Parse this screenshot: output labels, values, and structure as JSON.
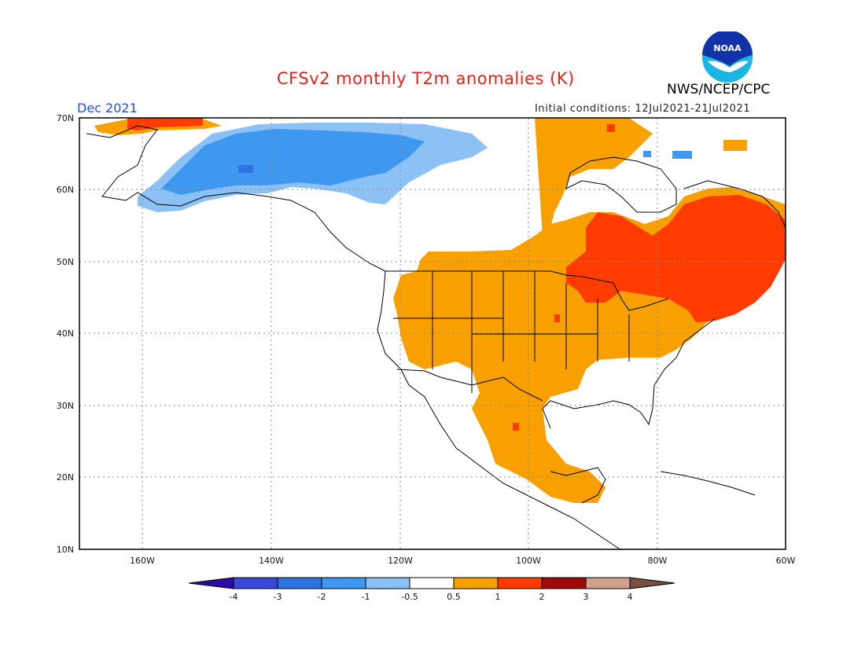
{
  "header": {
    "title": "CFSv2 monthly T2m anomalies (K)",
    "period": "Dec 2021",
    "initial_conditions": "Initial conditions: 12Jul2021-21Jul2021",
    "agency": "NWS/NCEP/CPC",
    "logo_text": "NOAA"
  },
  "axes": {
    "lat_labels": [
      "70N",
      "60N",
      "50N",
      "40N",
      "30N",
      "20N",
      "10N"
    ],
    "lon_labels": [
      "160W",
      "140W",
      "120W",
      "100W",
      "80W",
      "60W"
    ]
  },
  "colorbar": {
    "labels": [
      "-4",
      "-3",
      "-2",
      "-1",
      "-0.5",
      "0.5",
      "1",
      "2",
      "3",
      "4"
    ],
    "colors": [
      "#2a0ca8",
      "#3c46d8",
      "#2f73e3",
      "#3f98f0",
      "#8cc1f5",
      "#ffffff",
      "#f8a000",
      "#ff3c00",
      "#a00a0a",
      "#cfa090",
      "#7a5040"
    ]
  },
  "legend_colors": {
    "cold_strong": "#2f73e3",
    "cold": "#3f98f0",
    "cold_weak": "#8cc1f5",
    "warm": "#f8a000",
    "warm_strong": "#ff3c00",
    "warm_extreme": "#a00a0a"
  }
}
